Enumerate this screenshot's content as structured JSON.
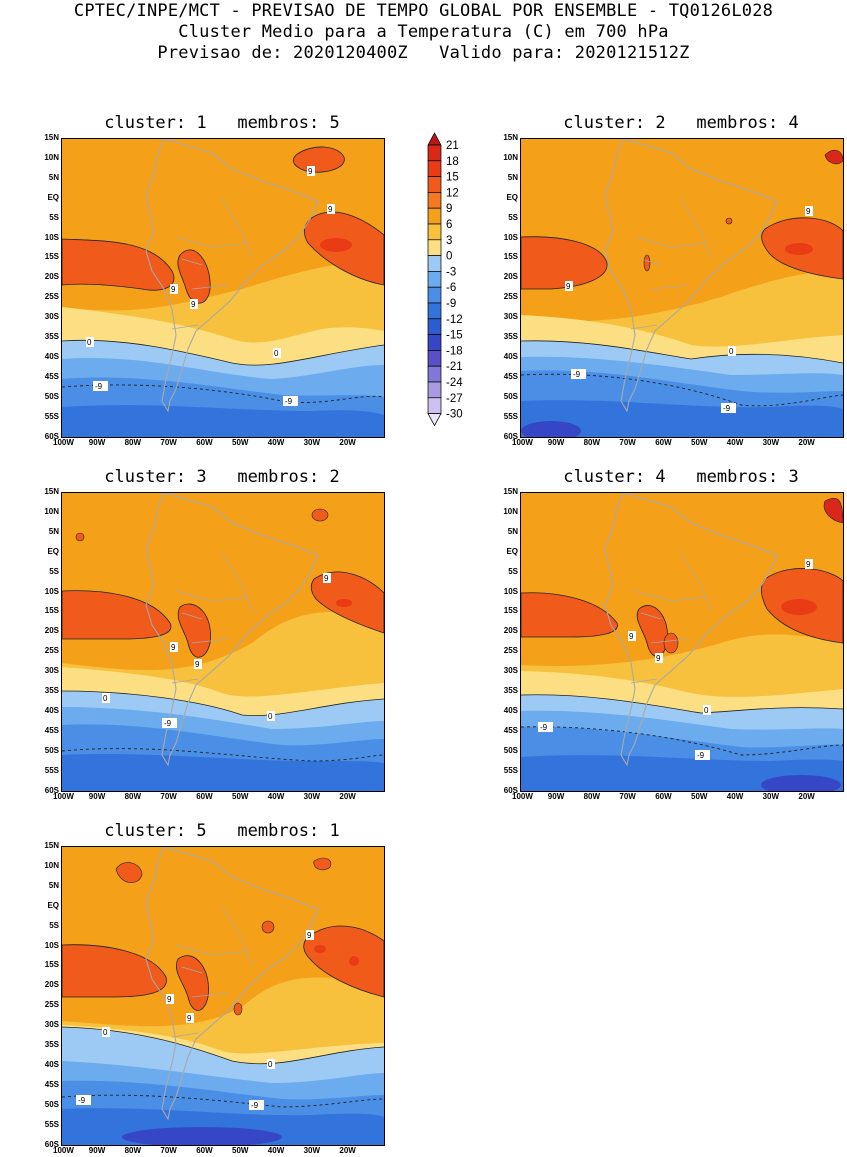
{
  "header": {
    "line1": "CPTEC/INPE/MCT - PREVISAO DE TEMPO GLOBAL POR ENSEMBLE - TQ0126L028",
    "line2": "Cluster Medio para a Temperatura (C) em 700 hPa",
    "line3": "Previsao de: 2020120400Z   Valido para: 2020121512Z"
  },
  "colorbar": {
    "labels": [
      "21",
      "18",
      "15",
      "12",
      "9",
      "6",
      "3",
      "0",
      "-3",
      "-6",
      "-9",
      "-12",
      "-15",
      "-18",
      "-21",
      "-24",
      "-27",
      "-30"
    ],
    "colors": [
      "#b81818",
      "#d9281a",
      "#ea3c14",
      "#f05a1a",
      "#f47a20",
      "#f5a019",
      "#f7c03d",
      "#fbdf82",
      "#9ccaf4",
      "#6cabed",
      "#4a8ee6",
      "#3373dc",
      "#2c5ccf",
      "#3647c5",
      "#5a4fc8",
      "#8276d6",
      "#a89be2",
      "#cdc2ef",
      "#ece6f8"
    ]
  },
  "axes": {
    "lat_labels": [
      "15N",
      "10N",
      "5N",
      "EQ",
      "5S",
      "10S",
      "15S",
      "20S",
      "25S",
      "30S",
      "35S",
      "40S",
      "45S",
      "50S",
      "55S",
      "60S"
    ],
    "lon_labels": [
      "100W",
      "90W",
      "80W",
      "70W",
      "60W",
      "50W",
      "40W",
      "30W",
      "20W"
    ]
  },
  "panels": [
    {
      "cluster_label": "cluster:",
      "cluster": "1",
      "members_label": "membros:",
      "members": "5",
      "contours": {
        "c9a": "9",
        "c9b": "9",
        "c9c": "9",
        "c9d": "9",
        "c0a": "0",
        "c0b": "0",
        "cm9a": "-9",
        "cm9b": "-9"
      }
    },
    {
      "cluster_label": "cluster:",
      "cluster": "2",
      "members_label": "membros:",
      "members": "4",
      "contours": {
        "c9a": "9",
        "c9b": "9",
        "c0a": "0",
        "cm9a": "-9",
        "cm9b": "-9"
      }
    },
    {
      "cluster_label": "cluster:",
      "cluster": "3",
      "members_label": "membros:",
      "members": "2",
      "contours": {
        "c9a": "9",
        "c9b": "9",
        "c9c": "9",
        "c0a": "0",
        "c0b": "0",
        "cm9a": "-9"
      }
    },
    {
      "cluster_label": "cluster:",
      "cluster": "4",
      "members_label": "membros:",
      "members": "3",
      "contours": {
        "c9a": "9",
        "c9b": "9",
        "c9c": "9",
        "c0a": "0",
        "cm9a": "-9",
        "cm9b": "-9"
      }
    },
    {
      "cluster_label": "cluster:",
      "cluster": "5",
      "members_label": "membros:",
      "members": "1",
      "contours": {
        "c9a": "9",
        "c9b": "9",
        "c9c": "9",
        "c0a": "0",
        "c0b": "0",
        "cm9a": "-9",
        "cm9b": "-9"
      }
    }
  ]
}
